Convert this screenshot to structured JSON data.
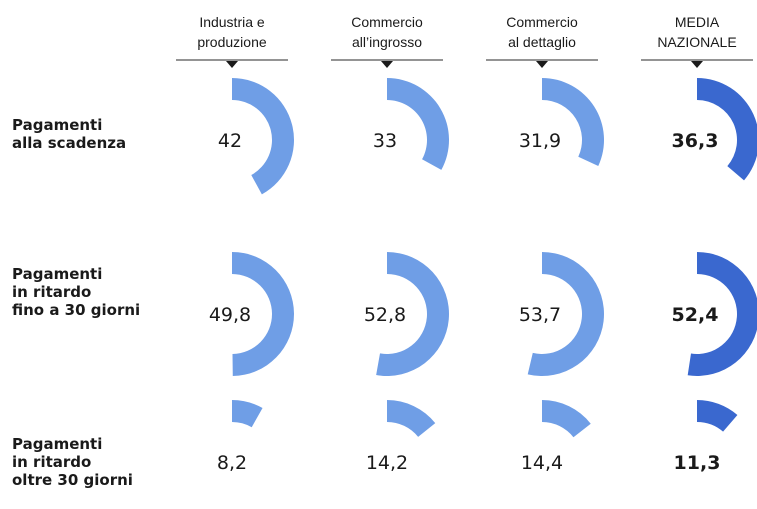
{
  "chart_data": {
    "type": "pie",
    "columns": [
      {
        "label_lines": [
          "Industria e",
          "produzione"
        ]
      },
      {
        "label_lines": [
          "Commercio",
          "all’ingrosso"
        ]
      },
      {
        "label_lines": [
          "Commercio",
          "al dettaglio"
        ]
      },
      {
        "label_lines": [
          "MEDIA",
          "NAZIONALE"
        ],
        "highlight": true
      }
    ],
    "rows": [
      {
        "label_lines": [
          "Pagamenti",
          "alla scadenza"
        ],
        "values": [
          42,
          33,
          31.9,
          36.3
        ],
        "value_labels": [
          "42",
          "33",
          "31,9",
          "36,3"
        ]
      },
      {
        "label_lines": [
          "Pagamenti",
          "in ritardo",
          "fino a 30 giorni"
        ],
        "values": [
          49.8,
          52.8,
          53.7,
          52.4
        ],
        "value_labels": [
          "49,8",
          "52,8",
          "53,7",
          "52,4"
        ]
      },
      {
        "label_lines": [
          "Pagamenti",
          "in ritardo",
          "oltre 30 giorni"
        ],
        "values": [
          8.2,
          14.2,
          14.4,
          11.3
        ],
        "value_labels": [
          "8,2",
          "14,2",
          "14,4",
          "11,3"
        ]
      }
    ],
    "colors": {
      "sector": "#6f9ee6",
      "national": "#3a68cf",
      "pointer": "#1a1a1a"
    }
  }
}
